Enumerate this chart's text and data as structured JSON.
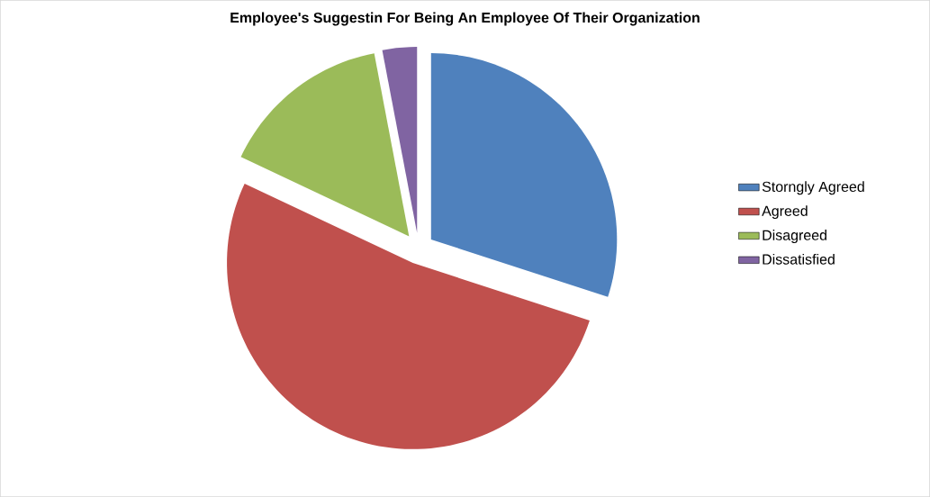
{
  "chart_data": {
    "type": "pie",
    "title": "Employee's Suggestin  For Being An Employee Of Their Organization",
    "categories": [
      "Storngly Agreed",
      "Agreed",
      "Disagreed",
      "Dissatisfied"
    ],
    "values": [
      30,
      52,
      15,
      3
    ],
    "colors": [
      "#4f81bd",
      "#c0504d",
      "#9bbb59",
      "#8064a2"
    ],
    "legend": "right"
  }
}
